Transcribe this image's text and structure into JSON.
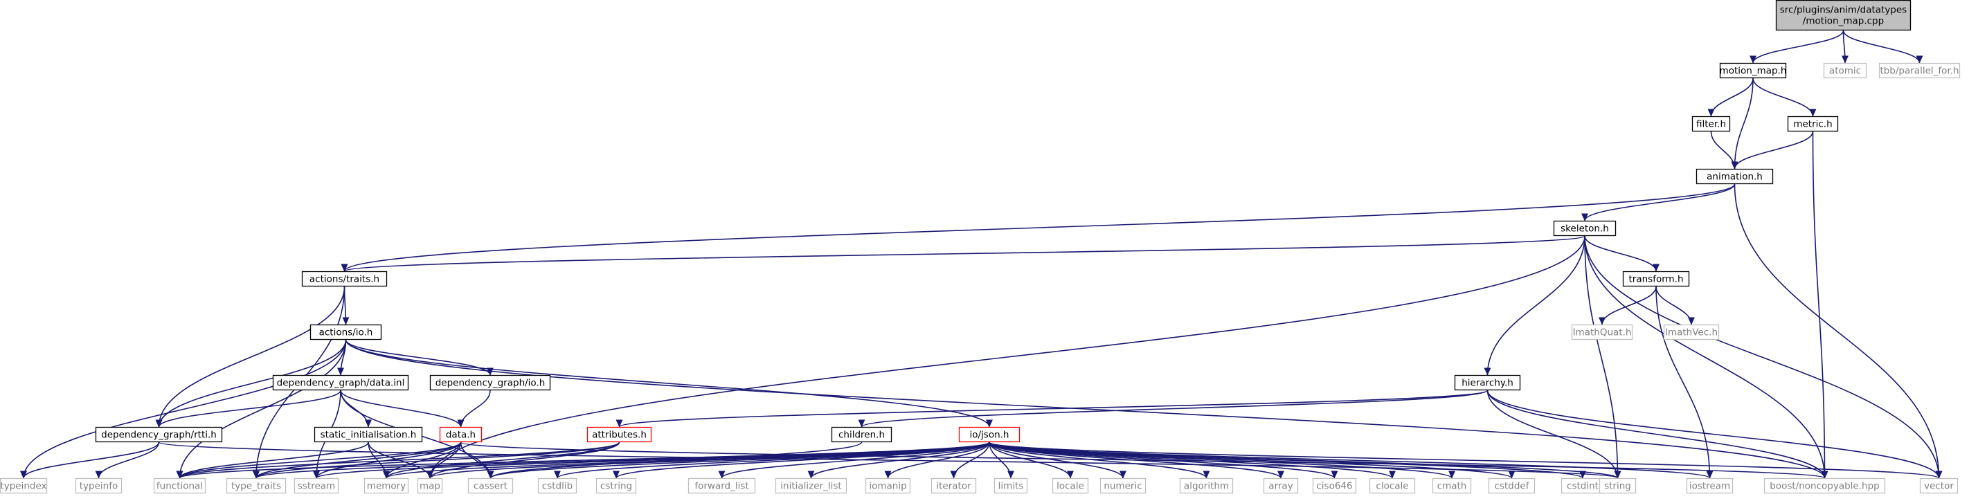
{
  "colors": {
    "edge": "#191970",
    "text": "#000000",
    "external_text": "#808080",
    "border_normal": "#000000",
    "border_external": "#bfbfbf",
    "border_truncated": "#ff0000",
    "fill_root": "#bfbfbf",
    "fill_default": "#ffffff"
  },
  "nodes": [
    {
      "id": "root",
      "kind": "root",
      "lines": [
        "src/plugins/anim/datatypes",
        "/motion_map.cpp"
      ]
    },
    {
      "id": "motion_map_h",
      "kind": "normal",
      "lines": [
        "motion_map.h"
      ]
    },
    {
      "id": "atomic",
      "kind": "external",
      "lines": [
        "atomic"
      ]
    },
    {
      "id": "tbb_parallel_for",
      "kind": "external",
      "lines": [
        "tbb/parallel_for.h"
      ]
    },
    {
      "id": "filter_h",
      "kind": "normal",
      "lines": [
        "filter.h"
      ]
    },
    {
      "id": "metric_h",
      "kind": "normal",
      "lines": [
        "metric.h"
      ]
    },
    {
      "id": "animation_h",
      "kind": "normal",
      "lines": [
        "animation.h"
      ]
    },
    {
      "id": "skeleton_h",
      "kind": "normal",
      "lines": [
        "skeleton.h"
      ]
    },
    {
      "id": "actions_traits_h",
      "kind": "normal",
      "lines": [
        "actions/traits.h"
      ]
    },
    {
      "id": "transform_h",
      "kind": "normal",
      "lines": [
        "transform.h"
      ]
    },
    {
      "id": "actions_io_h",
      "kind": "normal",
      "lines": [
        "actions/io.h"
      ]
    },
    {
      "id": "imathquat",
      "kind": "external",
      "lines": [
        "ImathQuat.h"
      ]
    },
    {
      "id": "imathvec",
      "kind": "external",
      "lines": [
        "ImathVec.h"
      ]
    },
    {
      "id": "dg_data_inl",
      "kind": "normal",
      "lines": [
        "dependency_graph/data.inl"
      ]
    },
    {
      "id": "dg_io_h",
      "kind": "normal",
      "lines": [
        "dependency_graph/io.h"
      ]
    },
    {
      "id": "hierarchy_h",
      "kind": "normal",
      "lines": [
        "hierarchy.h"
      ]
    },
    {
      "id": "dg_rtti_h",
      "kind": "normal",
      "lines": [
        "dependency_graph/rtti.h"
      ]
    },
    {
      "id": "static_init_h",
      "kind": "normal",
      "lines": [
        "static_initialisation.h"
      ]
    },
    {
      "id": "data_h",
      "kind": "truncated",
      "lines": [
        "data.h"
      ]
    },
    {
      "id": "attributes_h",
      "kind": "truncated",
      "lines": [
        "attributes.h"
      ]
    },
    {
      "id": "children_h",
      "kind": "normal",
      "lines": [
        "children.h"
      ]
    },
    {
      "id": "io_json_h",
      "kind": "truncated",
      "lines": [
        "io/json.h"
      ]
    },
    {
      "id": "typeindex",
      "kind": "external",
      "lines": [
        "typeindex"
      ]
    },
    {
      "id": "typeinfo",
      "kind": "external",
      "lines": [
        "typeinfo"
      ]
    },
    {
      "id": "functional",
      "kind": "external",
      "lines": [
        "functional"
      ]
    },
    {
      "id": "type_traits",
      "kind": "external",
      "lines": [
        "type_traits"
      ]
    },
    {
      "id": "sstream",
      "kind": "external",
      "lines": [
        "sstream"
      ]
    },
    {
      "id": "memory",
      "kind": "external",
      "lines": [
        "memory"
      ]
    },
    {
      "id": "map",
      "kind": "external",
      "lines": [
        "map"
      ]
    },
    {
      "id": "cassert",
      "kind": "external",
      "lines": [
        "cassert"
      ]
    },
    {
      "id": "cstdlib",
      "kind": "external",
      "lines": [
        "cstdlib"
      ]
    },
    {
      "id": "cstring",
      "kind": "external",
      "lines": [
        "cstring"
      ]
    },
    {
      "id": "forward_list",
      "kind": "external",
      "lines": [
        "forward_list"
      ]
    },
    {
      "id": "initializer_list",
      "kind": "external",
      "lines": [
        "initializer_list"
      ]
    },
    {
      "id": "iomanip",
      "kind": "external",
      "lines": [
        "iomanip"
      ]
    },
    {
      "id": "iterator",
      "kind": "external",
      "lines": [
        "iterator"
      ]
    },
    {
      "id": "limits",
      "kind": "external",
      "lines": [
        "limits"
      ]
    },
    {
      "id": "locale",
      "kind": "external",
      "lines": [
        "locale"
      ]
    },
    {
      "id": "numeric",
      "kind": "external",
      "lines": [
        "numeric"
      ]
    },
    {
      "id": "algorithm",
      "kind": "external",
      "lines": [
        "algorithm"
      ]
    },
    {
      "id": "array",
      "kind": "external",
      "lines": [
        "array"
      ]
    },
    {
      "id": "ciso646",
      "kind": "external",
      "lines": [
        "ciso646"
      ]
    },
    {
      "id": "clocale",
      "kind": "external",
      "lines": [
        "clocale"
      ]
    },
    {
      "id": "cmath",
      "kind": "external",
      "lines": [
        "cmath"
      ]
    },
    {
      "id": "cstddef",
      "kind": "external",
      "lines": [
        "cstddef"
      ]
    },
    {
      "id": "cstdint",
      "kind": "external",
      "lines": [
        "cstdint"
      ]
    },
    {
      "id": "string",
      "kind": "external",
      "lines": [
        "string"
      ]
    },
    {
      "id": "iostream",
      "kind": "external",
      "lines": [
        "iostream"
      ]
    },
    {
      "id": "boost_noncopyable",
      "kind": "external",
      "lines": [
        "boost/noncopyable.hpp"
      ]
    },
    {
      "id": "vector",
      "kind": "external",
      "lines": [
        "vector"
      ]
    }
  ],
  "edges": [
    [
      "root",
      "motion_map_h"
    ],
    [
      "root",
      "atomic"
    ],
    [
      "root",
      "tbb_parallel_for"
    ],
    [
      "motion_map_h",
      "filter_h"
    ],
    [
      "motion_map_h",
      "metric_h"
    ],
    [
      "motion_map_h",
      "animation_h"
    ],
    [
      "filter_h",
      "animation_h"
    ],
    [
      "metric_h",
      "animation_h"
    ],
    [
      "metric_h",
      "boost_noncopyable"
    ],
    [
      "animation_h",
      "actions_traits_h"
    ],
    [
      "animation_h",
      "skeleton_h"
    ],
    [
      "animation_h",
      "vector"
    ],
    [
      "skeleton_h",
      "actions_traits_h"
    ],
    [
      "skeleton_h",
      "transform_h"
    ],
    [
      "skeleton_h",
      "hierarchy_h"
    ],
    [
      "skeleton_h",
      "map"
    ],
    [
      "skeleton_h",
      "string"
    ],
    [
      "skeleton_h",
      "boost_noncopyable"
    ],
    [
      "skeleton_h",
      "vector"
    ],
    [
      "actions_traits_h",
      "actions_io_h"
    ],
    [
      "actions_traits_h",
      "dg_rtti_h"
    ],
    [
      "actions_traits_h",
      "type_traits"
    ],
    [
      "transform_h",
      "imathquat"
    ],
    [
      "transform_h",
      "imathvec"
    ],
    [
      "transform_h",
      "iostream"
    ],
    [
      "actions_io_h",
      "dg_data_inl"
    ],
    [
      "actions_io_h",
      "dg_io_h"
    ],
    [
      "actions_io_h",
      "dg_rtti_h"
    ],
    [
      "actions_io_h",
      "io_json_h"
    ],
    [
      "actions_io_h",
      "typeindex"
    ],
    [
      "actions_io_h",
      "functional"
    ],
    [
      "actions_io_h",
      "boost_noncopyable"
    ],
    [
      "dg_data_inl",
      "dg_rtti_h"
    ],
    [
      "dg_data_inl",
      "static_init_h"
    ],
    [
      "dg_data_inl",
      "data_h"
    ],
    [
      "dg_data_inl",
      "sstream"
    ],
    [
      "dg_data_inl",
      "cassert"
    ],
    [
      "dg_io_h",
      "data_h"
    ],
    [
      "hierarchy_h",
      "attributes_h"
    ],
    [
      "hierarchy_h",
      "children_h"
    ],
    [
      "hierarchy_h",
      "string"
    ],
    [
      "hierarchy_h",
      "boost_noncopyable"
    ],
    [
      "hierarchy_h",
      "vector"
    ],
    [
      "dg_rtti_h",
      "typeindex"
    ],
    [
      "dg_rtti_h",
      "typeinfo"
    ],
    [
      "dg_rtti_h",
      "string"
    ],
    [
      "static_init_h",
      "functional"
    ],
    [
      "static_init_h",
      "memory"
    ],
    [
      "static_init_h",
      "map"
    ],
    [
      "data_h",
      "functional"
    ],
    [
      "data_h",
      "type_traits"
    ],
    [
      "data_h",
      "sstream"
    ],
    [
      "data_h",
      "memory"
    ],
    [
      "data_h",
      "map"
    ],
    [
      "data_h",
      "cassert"
    ],
    [
      "data_h",
      "boost_noncopyable"
    ],
    [
      "attributes_h",
      "functional"
    ],
    [
      "attributes_h",
      "type_traits"
    ],
    [
      "attributes_h",
      "memory"
    ],
    [
      "attributes_h",
      "map"
    ],
    [
      "children_h",
      "cassert"
    ],
    [
      "io_json_h",
      "functional"
    ],
    [
      "io_json_h",
      "type_traits"
    ],
    [
      "io_json_h",
      "sstream"
    ],
    [
      "io_json_h",
      "memory"
    ],
    [
      "io_json_h",
      "map"
    ],
    [
      "io_json_h",
      "cassert"
    ],
    [
      "io_json_h",
      "cstdlib"
    ],
    [
      "io_json_h",
      "cstring"
    ],
    [
      "io_json_h",
      "forward_list"
    ],
    [
      "io_json_h",
      "initializer_list"
    ],
    [
      "io_json_h",
      "iomanip"
    ],
    [
      "io_json_h",
      "iterator"
    ],
    [
      "io_json_h",
      "limits"
    ],
    [
      "io_json_h",
      "locale"
    ],
    [
      "io_json_h",
      "numeric"
    ],
    [
      "io_json_h",
      "algorithm"
    ],
    [
      "io_json_h",
      "array"
    ],
    [
      "io_json_h",
      "ciso646"
    ],
    [
      "io_json_h",
      "clocale"
    ],
    [
      "io_json_h",
      "cmath"
    ],
    [
      "io_json_h",
      "cstddef"
    ],
    [
      "io_json_h",
      "cstdint"
    ],
    [
      "io_json_h",
      "string"
    ],
    [
      "io_json_h",
      "iostream"
    ],
    [
      "io_json_h",
      "vector"
    ]
  ]
}
